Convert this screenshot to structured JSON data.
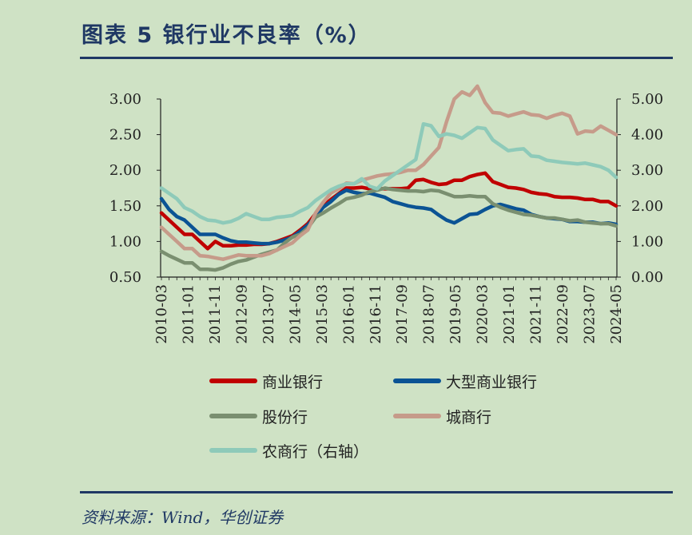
{
  "title": "图表 5    银行业不良率（%）",
  "source": "资料来源：Wind，华创证券",
  "chart_data": {
    "type": "line",
    "x_tick_labels": [
      "2010-03",
      "2011-01",
      "2011-11",
      "2012-09",
      "2013-07",
      "2014-05",
      "2015-03",
      "2016-01",
      "2016-11",
      "2017-09",
      "2018-07",
      "2019-05",
      "2020-03",
      "2021-01",
      "2021-11",
      "2022-09",
      "2023-07",
      "2024-05"
    ],
    "x": [
      "2010-03",
      "2010-06",
      "2010-09",
      "2010-12",
      "2011-03",
      "2011-06",
      "2011-09",
      "2011-12",
      "2012-03",
      "2012-06",
      "2012-09",
      "2012-12",
      "2013-03",
      "2013-06",
      "2013-09",
      "2013-12",
      "2014-03",
      "2014-06",
      "2014-09",
      "2014-12",
      "2015-03",
      "2015-06",
      "2015-09",
      "2015-12",
      "2016-03",
      "2016-06",
      "2016-09",
      "2016-12",
      "2017-03",
      "2017-06",
      "2017-09",
      "2017-12",
      "2018-03",
      "2018-06",
      "2018-09",
      "2018-12",
      "2019-03",
      "2019-06",
      "2019-09",
      "2019-12",
      "2020-03",
      "2020-06",
      "2020-09",
      "2020-12",
      "2021-03",
      "2021-06",
      "2021-09",
      "2021-12",
      "2022-03",
      "2022-06",
      "2022-09",
      "2022-12",
      "2023-03",
      "2023-06",
      "2023-09",
      "2023-12",
      "2024-03",
      "2024-06",
      "2024-09",
      "2024-12"
    ],
    "y_left": {
      "min": 0.5,
      "max": 3.0,
      "ticks": [
        "0.50",
        "1.00",
        "1.50",
        "2.00",
        "2.50",
        "3.00"
      ]
    },
    "y_right": {
      "min": 0.0,
      "max": 5.0,
      "ticks": [
        "0.00",
        "1.00",
        "2.00",
        "3.00",
        "4.00",
        "5.00"
      ]
    },
    "series": [
      {
        "name": "商业银行",
        "axis": "left",
        "color": "#c00000",
        "values": [
          1.4,
          1.3,
          1.2,
          1.1,
          1.1,
          1.0,
          0.9,
          1.0,
          0.94,
          0.94,
          0.95,
          0.95,
          0.96,
          0.96,
          0.97,
          1.0,
          1.04,
          1.08,
          1.16,
          1.25,
          1.39,
          1.5,
          1.59,
          1.67,
          1.75,
          1.75,
          1.76,
          1.74,
          1.74,
          1.74,
          1.74,
          1.74,
          1.75,
          1.86,
          1.87,
          1.83,
          1.8,
          1.81,
          1.86,
          1.86,
          1.91,
          1.94,
          1.96,
          1.84,
          1.8,
          1.76,
          1.75,
          1.73,
          1.69,
          1.67,
          1.66,
          1.63,
          1.62,
          1.62,
          1.61,
          1.59,
          1.59,
          1.56,
          1.56,
          1.5
        ]
      },
      {
        "name": "大型商业银行",
        "axis": "left",
        "color": "#0b5394",
        "values": [
          1.6,
          1.45,
          1.35,
          1.3,
          1.2,
          1.1,
          1.1,
          1.1,
          1.05,
          1.01,
          0.99,
          0.99,
          0.98,
          0.97,
          0.97,
          0.99,
          1.02,
          1.06,
          1.14,
          1.23,
          1.35,
          1.48,
          1.56,
          1.66,
          1.72,
          1.69,
          1.67,
          1.68,
          1.65,
          1.62,
          1.56,
          1.53,
          1.5,
          1.48,
          1.47,
          1.45,
          1.37,
          1.3,
          1.26,
          1.32,
          1.38,
          1.39,
          1.45,
          1.5,
          1.52,
          1.49,
          1.46,
          1.44,
          1.38,
          1.35,
          1.33,
          1.32,
          1.31,
          1.28,
          1.28,
          1.27,
          1.27,
          1.25,
          1.26,
          1.24
        ]
      },
      {
        "name": "股份行",
        "axis": "left",
        "color": "#7a8f70",
        "values": [
          0.86,
          0.8,
          0.75,
          0.7,
          0.7,
          0.61,
          0.61,
          0.6,
          0.63,
          0.68,
          0.72,
          0.74,
          0.78,
          0.82,
          0.85,
          0.88,
          0.98,
          1.06,
          1.1,
          1.19,
          1.34,
          1.4,
          1.47,
          1.53,
          1.6,
          1.62,
          1.65,
          1.7,
          1.72,
          1.75,
          1.73,
          1.72,
          1.71,
          1.71,
          1.7,
          1.72,
          1.71,
          1.67,
          1.63,
          1.63,
          1.64,
          1.63,
          1.63,
          1.53,
          1.48,
          1.44,
          1.41,
          1.38,
          1.37,
          1.35,
          1.33,
          1.33,
          1.31,
          1.29,
          1.3,
          1.27,
          1.26,
          1.25,
          1.25,
          1.22
        ]
      },
      {
        "name": "城商行",
        "axis": "left",
        "color": "#c69b8a",
        "values": [
          1.2,
          1.1,
          1.0,
          0.9,
          0.9,
          0.8,
          0.79,
          0.77,
          0.75,
          0.78,
          0.81,
          0.8,
          0.8,
          0.8,
          0.83,
          0.88,
          0.93,
          0.98,
          1.08,
          1.16,
          1.4,
          1.55,
          1.68,
          1.74,
          1.82,
          1.81,
          1.86,
          1.89,
          1.92,
          1.94,
          1.95,
          1.97,
          2.0,
          2.0,
          2.08,
          2.2,
          2.32,
          2.68,
          3.0,
          3.1,
          3.05,
          3.18,
          2.95,
          2.81,
          2.8,
          2.76,
          2.79,
          2.82,
          2.78,
          2.77,
          2.73,
          2.77,
          2.8,
          2.76,
          2.51,
          2.55,
          2.54,
          2.62,
          2.56,
          2.5
        ]
      },
      {
        "name": "农商行（右轴）",
        "axis": "right",
        "color": "#8ecab9",
        "values": [
          2.5,
          2.35,
          2.2,
          1.95,
          1.85,
          1.7,
          1.6,
          1.58,
          1.52,
          1.56,
          1.65,
          1.78,
          1.7,
          1.62,
          1.62,
          1.68,
          1.7,
          1.73,
          1.85,
          1.95,
          2.15,
          2.3,
          2.45,
          2.55,
          2.62,
          2.62,
          2.76,
          2.55,
          2.48,
          2.7,
          2.85,
          3.0,
          3.15,
          3.3,
          4.3,
          4.25,
          3.95,
          4.02,
          3.98,
          3.9,
          4.05,
          4.2,
          4.17,
          3.85,
          3.7,
          3.55,
          3.58,
          3.6,
          3.4,
          3.38,
          3.28,
          3.25,
          3.22,
          3.2,
          3.18,
          3.2,
          3.15,
          3.1,
          3.0,
          2.8
        ]
      }
    ],
    "legend": [
      {
        "label": "商业银行",
        "color": "#c00000"
      },
      {
        "label": "大型商业银行",
        "color": "#0b5394"
      },
      {
        "label": "股份行",
        "color": "#7a8f70"
      },
      {
        "label": "城商行",
        "color": "#c69b8a"
      },
      {
        "label": "农商行（右轴）",
        "color": "#8ecab9"
      }
    ]
  }
}
